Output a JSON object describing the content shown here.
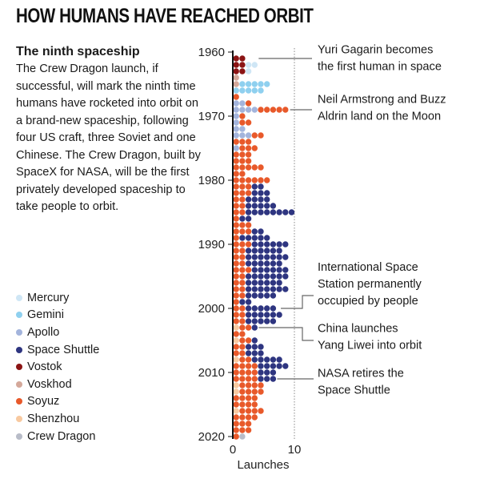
{
  "title": "HOW HUMANS HAVE REACHED ORBIT",
  "intro": {
    "heading": "The ninth spaceship",
    "body": "The Crew Dragon launch, if successful, will mark the ninth time humans have rocketed into orbit on a brand-new spaceship, following four US craft, three Soviet and one Chinese. The Crew Dragon, built by SpaceX for NASA, will be the first privately developed spaceship to take people to orbit."
  },
  "chart_data": {
    "type": "dot-stack",
    "xlabel": "Launches",
    "x_ticks": [
      "0",
      "10"
    ],
    "xlim": [
      0,
      10
    ],
    "y_ticks": [
      "1960",
      "1970",
      "1980",
      "1990",
      "2000",
      "2010",
      "2020"
    ],
    "ylim": [
      1960,
      2020
    ],
    "legend": [
      {
        "name": "Mercury",
        "color": "#cfe6f5"
      },
      {
        "name": "Gemini",
        "color": "#8fd0ef"
      },
      {
        "name": "Apollo",
        "color": "#a3b4dc"
      },
      {
        "name": "Space Shuttle",
        "color": "#2e3580"
      },
      {
        "name": "Vostok",
        "color": "#8b1414"
      },
      {
        "name": "Voskhod",
        "color": "#d4a89a"
      },
      {
        "name": "Soyuz",
        "color": "#e8592a"
      },
      {
        "name": "Shenzhou",
        "color": "#f8c9a0"
      },
      {
        "name": "Crew Dragon",
        "color": "#b8bcc8"
      }
    ],
    "years": [
      {
        "year": 1961,
        "counts": {
          "Vostok": 2
        }
      },
      {
        "year": 1962,
        "counts": {
          "Mercury": 2,
          "Vostok": 2
        }
      },
      {
        "year": 1963,
        "counts": {
          "Mercury": 1,
          "Vostok": 2
        }
      },
      {
        "year": 1964,
        "counts": {
          "Voskhod": 1
        }
      },
      {
        "year": 1965,
        "counts": {
          "Gemini": 5,
          "Voskhod": 1
        }
      },
      {
        "year": 1966,
        "counts": {
          "Gemini": 5
        }
      },
      {
        "year": 1967,
        "counts": {
          "Soyuz": 1
        }
      },
      {
        "year": 1968,
        "counts": {
          "Apollo": 2,
          "Soyuz": 1
        }
      },
      {
        "year": 1969,
        "counts": {
          "Apollo": 4,
          "Soyuz": 5
        }
      },
      {
        "year": 1970,
        "counts": {
          "Apollo": 1,
          "Soyuz": 1
        }
      },
      {
        "year": 1971,
        "counts": {
          "Apollo": 1,
          "Soyuz": 2
        }
      },
      {
        "year": 1972,
        "counts": {
          "Apollo": 2
        }
      },
      {
        "year": 1973,
        "counts": {
          "Apollo": 3,
          "Soyuz": 2
        }
      },
      {
        "year": 1974,
        "counts": {
          "Soyuz": 3
        }
      },
      {
        "year": 1975,
        "counts": {
          "Apollo": 1,
          "Soyuz": 3
        }
      },
      {
        "year": 1976,
        "counts": {
          "Soyuz": 3
        }
      },
      {
        "year": 1977,
        "counts": {
          "Soyuz": 3
        }
      },
      {
        "year": 1978,
        "counts": {
          "Soyuz": 5
        }
      },
      {
        "year": 1979,
        "counts": {
          "Soyuz": 2
        }
      },
      {
        "year": 1980,
        "counts": {
          "Soyuz": 6
        }
      },
      {
        "year": 1981,
        "counts": {
          "Soyuz": 3,
          "Space Shuttle": 2
        }
      },
      {
        "year": 1982,
        "counts": {
          "Soyuz": 3,
          "Space Shuttle": 3
        }
      },
      {
        "year": 1983,
        "counts": {
          "Soyuz": 2,
          "Space Shuttle": 4
        }
      },
      {
        "year": 1984,
        "counts": {
          "Soyuz": 2,
          "Space Shuttle": 5
        }
      },
      {
        "year": 1985,
        "counts": {
          "Soyuz": 2,
          "Space Shuttle": 8
        }
      },
      {
        "year": 1986,
        "counts": {
          "Soyuz": 1,
          "Space Shuttle": 2
        }
      },
      {
        "year": 1987,
        "counts": {
          "Soyuz": 3
        }
      },
      {
        "year": 1988,
        "counts": {
          "Soyuz": 3,
          "Space Shuttle": 2
        }
      },
      {
        "year": 1989,
        "counts": {
          "Soyuz": 1,
          "Space Shuttle": 5
        }
      },
      {
        "year": 1990,
        "counts": {
          "Soyuz": 3,
          "Space Shuttle": 6
        }
      },
      {
        "year": 1991,
        "counts": {
          "Soyuz": 2,
          "Space Shuttle": 6
        }
      },
      {
        "year": 1992,
        "counts": {
          "Soyuz": 2,
          "Space Shuttle": 7
        }
      },
      {
        "year": 1993,
        "counts": {
          "Soyuz": 2,
          "Space Shuttle": 6
        }
      },
      {
        "year": 1994,
        "counts": {
          "Soyuz": 3,
          "Space Shuttle": 6
        }
      },
      {
        "year": 1995,
        "counts": {
          "Soyuz": 2,
          "Space Shuttle": 7
        }
      },
      {
        "year": 1996,
        "counts": {
          "Soyuz": 2,
          "Space Shuttle": 6
        }
      },
      {
        "year": 1997,
        "counts": {
          "Soyuz": 2,
          "Space Shuttle": 7
        }
      },
      {
        "year": 1998,
        "counts": {
          "Soyuz": 2,
          "Space Shuttle": 5
        }
      },
      {
        "year": 1999,
        "counts": {
          "Soyuz": 1,
          "Space Shuttle": 2
        }
      },
      {
        "year": 2000,
        "counts": {
          "Soyuz": 2,
          "Space Shuttle": 5
        }
      },
      {
        "year": 2001,
        "counts": {
          "Soyuz": 2,
          "Space Shuttle": 6
        }
      },
      {
        "year": 2002,
        "counts": {
          "Soyuz": 2,
          "Space Shuttle": 5
        }
      },
      {
        "year": 2003,
        "counts": {
          "Shenzhou": 1,
          "Soyuz": 2,
          "Space Shuttle": 1
        }
      },
      {
        "year": 2004,
        "counts": {
          "Soyuz": 2
        }
      },
      {
        "year": 2005,
        "counts": {
          "Shenzhou": 1,
          "Soyuz": 2,
          "Space Shuttle": 1
        }
      },
      {
        "year": 2006,
        "counts": {
          "Soyuz": 2,
          "Space Shuttle": 3
        }
      },
      {
        "year": 2007,
        "counts": {
          "Soyuz": 2,
          "Space Shuttle": 3
        }
      },
      {
        "year": 2008,
        "counts": {
          "Shenzhou": 1,
          "Soyuz": 2,
          "Space Shuttle": 5
        }
      },
      {
        "year": 2009,
        "counts": {
          "Soyuz": 4,
          "Space Shuttle": 5
        }
      },
      {
        "year": 2010,
        "counts": {
          "Soyuz": 4,
          "Space Shuttle": 3
        }
      },
      {
        "year": 2011,
        "counts": {
          "Soyuz": 4,
          "Space Shuttle": 3
        }
      },
      {
        "year": 2012,
        "counts": {
          "Shenzhou": 1,
          "Soyuz": 4
        }
      },
      {
        "year": 2013,
        "counts": {
          "Shenzhou": 1,
          "Soyuz": 4
        }
      },
      {
        "year": 2014,
        "counts": {
          "Soyuz": 4
        }
      },
      {
        "year": 2015,
        "counts": {
          "Soyuz": 4
        }
      },
      {
        "year": 2016,
        "counts": {
          "Shenzhou": 1,
          "Soyuz": 4
        }
      },
      {
        "year": 2017,
        "counts": {
          "Soyuz": 4
        }
      },
      {
        "year": 2018,
        "counts": {
          "Soyuz": 3
        }
      },
      {
        "year": 2019,
        "counts": {
          "Soyuz": 3
        }
      },
      {
        "year": 2020,
        "counts": {
          "Soyuz": 1,
          "Crew Dragon": 1
        }
      }
    ],
    "annotations": [
      {
        "year": 1961,
        "lines": [
          "Yuri Gagarin becomes",
          "the first human in space"
        ]
      },
      {
        "year": 1969,
        "lines": [
          "Neil Armstrong and Buzz",
          "Aldrin land on the Moon"
        ]
      },
      {
        "year": 2000,
        "lines": [
          "International Space",
          "Station permanently",
          "occupied by people"
        ]
      },
      {
        "year": 2003,
        "lines": [
          "China launches",
          "Yang Liwei into orbit"
        ]
      },
      {
        "year": 2011,
        "lines": [
          "NASA retires the",
          "Space Shuttle"
        ]
      }
    ]
  }
}
